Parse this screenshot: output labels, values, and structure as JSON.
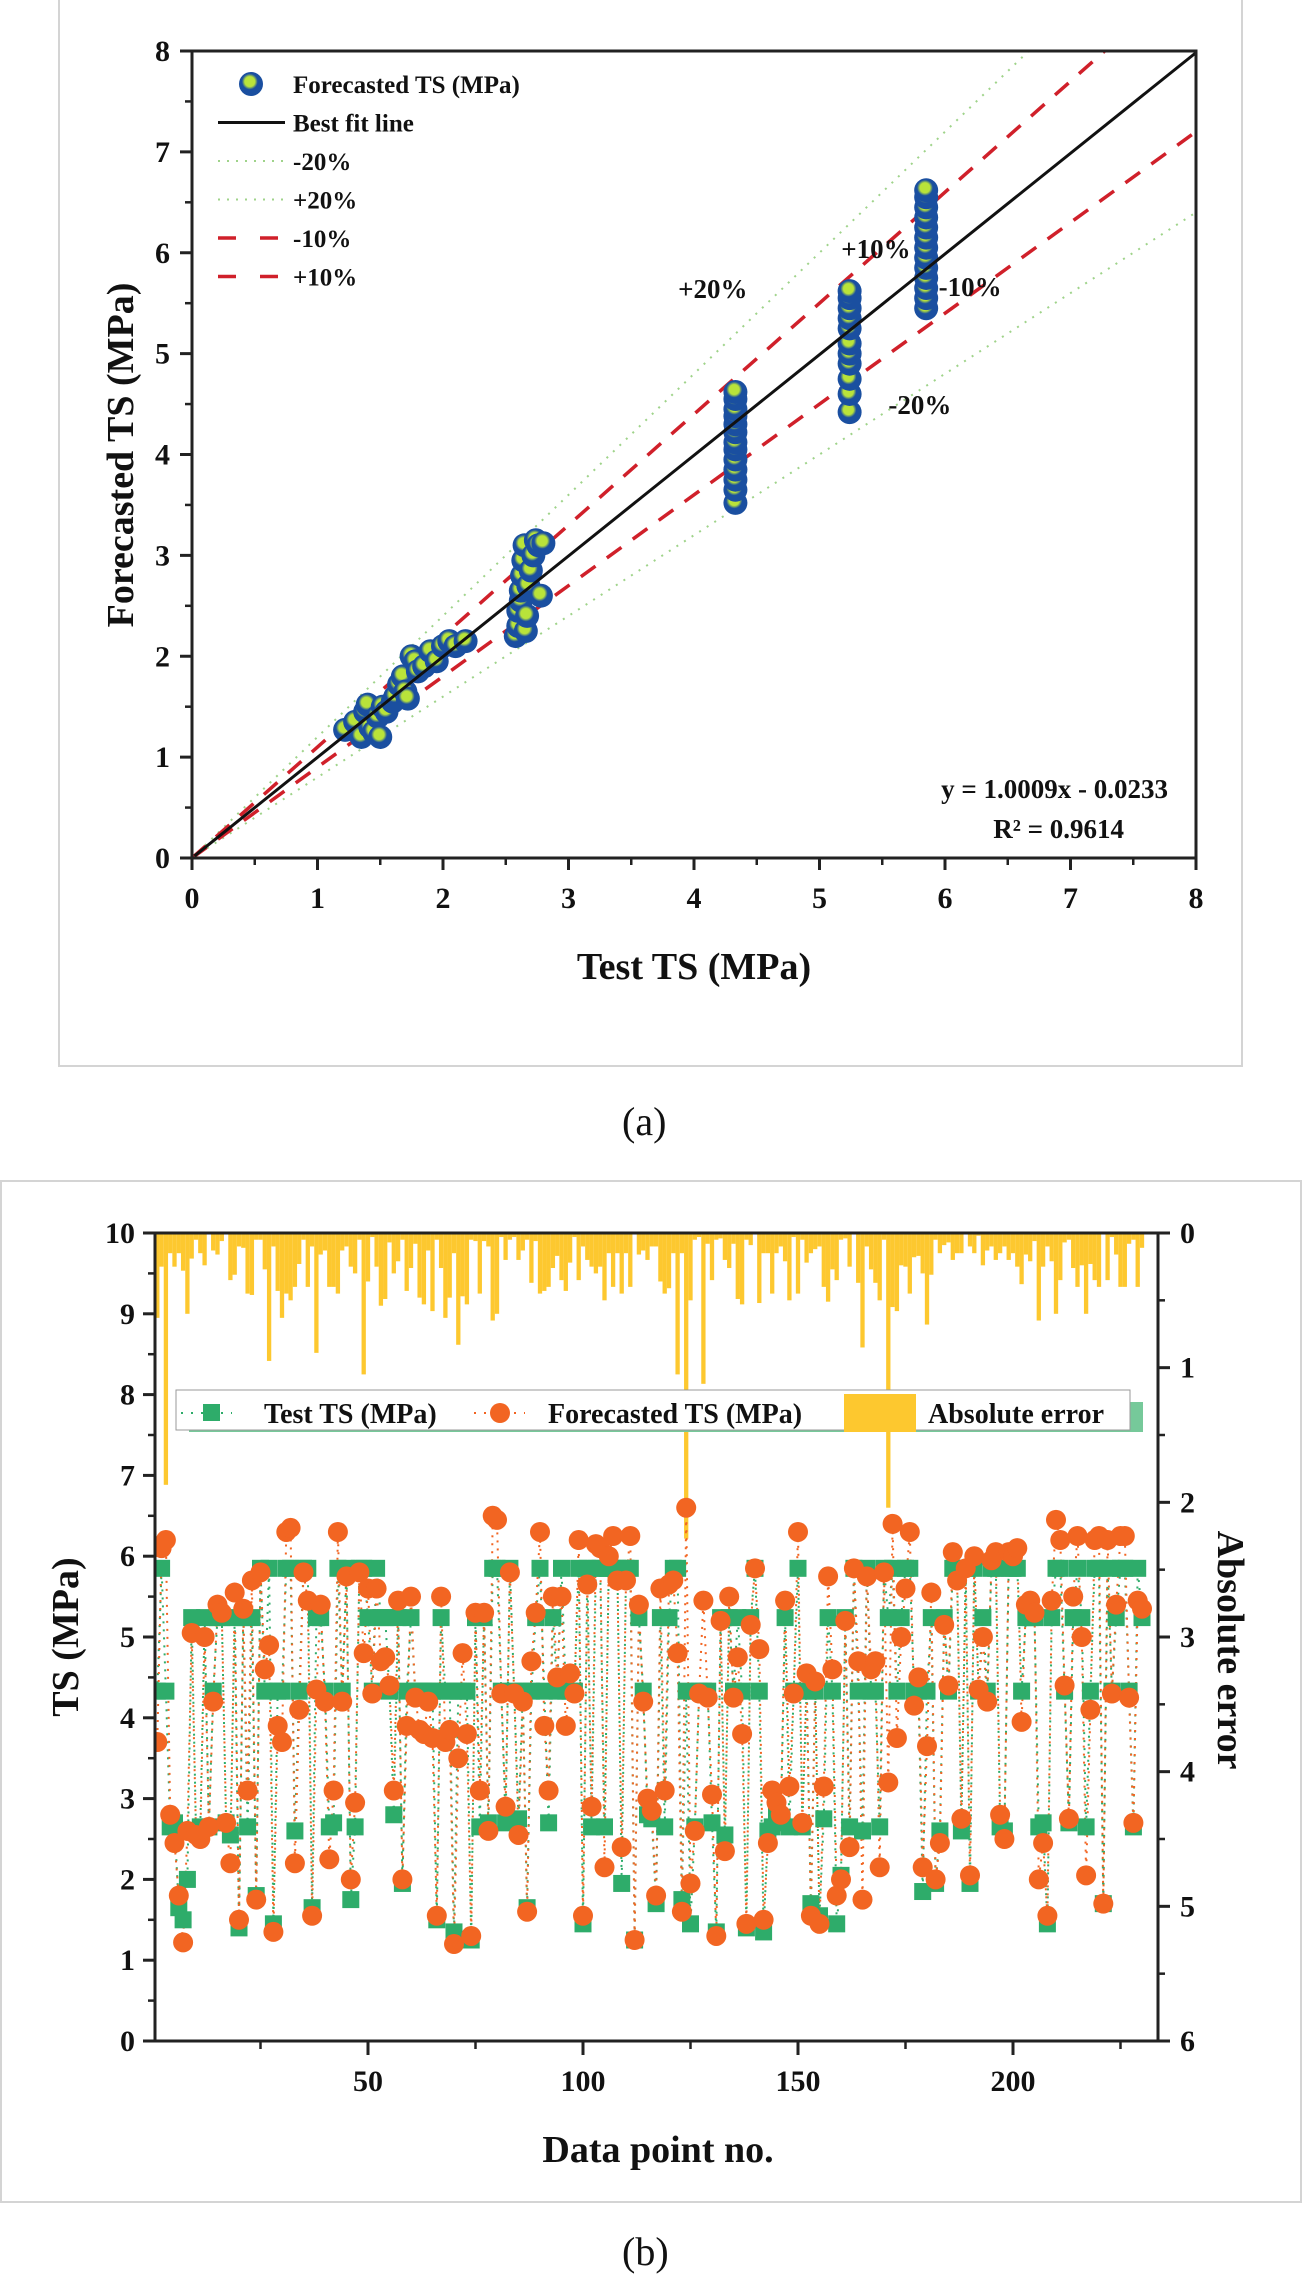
{
  "captions": {
    "a": "(a)",
    "b": "(b)"
  },
  "chart_data": [
    {
      "id": "a",
      "type": "scatter",
      "title": "",
      "xlabel": "Test TS (MPa)",
      "ylabel": "Forecasted TS (MPa)",
      "xlim": [
        0,
        8
      ],
      "ylim": [
        0,
        8
      ],
      "xticks": [
        "0",
        "1",
        "2",
        "3",
        "4",
        "5",
        "6",
        "7",
        "8"
      ],
      "yticks": [
        "0",
        "1",
        "2",
        "3",
        "4",
        "5",
        "6",
        "7",
        "8"
      ],
      "grid": false,
      "legend_position": "top-left",
      "legend": [
        {
          "label": "Forecasted TS (MPa)",
          "kind": "marker"
        },
        {
          "label": "Best fit line",
          "kind": "solid"
        },
        {
          "label": "-20%",
          "kind": "dotted"
        },
        {
          "label": "+20%",
          "kind": "dotted"
        },
        {
          "label": "-10%",
          "kind": "dashed"
        },
        {
          "label": "+10%",
          "kind": "dashed"
        }
      ],
      "colors": {
        "marker_outer": "#1a4fa0",
        "marker_inner": "#b9e33a",
        "fit": "#111111",
        "band10": "#d0202a",
        "band20": "#9fd38a"
      },
      "fit": {
        "slope": 1.0009,
        "intercept": -0.0233
      },
      "bands": [
        {
          "label": "+20%",
          "factor": 1.2
        },
        {
          "label": "-20%",
          "factor": 0.8
        },
        {
          "label": "+10%",
          "factor": 1.1
        },
        {
          "label": "-10%",
          "factor": 0.9
        }
      ],
      "annotations": [
        {
          "text": "+20%",
          "x": 4.15,
          "y": 5.55
        },
        {
          "text": "+10%",
          "x": 5.45,
          "y": 5.95
        },
        {
          "text": "-10%",
          "x": 6.2,
          "y": 5.57
        },
        {
          "text": "-20%",
          "x": 5.8,
          "y": 4.4
        }
      ],
      "equation": "y = 1.0009x - 0.0233",
      "r2": "R² = 0.9614",
      "points": [
        [
          1.22,
          1.27
        ],
        [
          1.3,
          1.35
        ],
        [
          1.35,
          1.2
        ],
        [
          1.38,
          1.45
        ],
        [
          1.4,
          1.52
        ],
        [
          1.42,
          1.3
        ],
        [
          1.45,
          1.25
        ],
        [
          1.48,
          1.4
        ],
        [
          1.5,
          1.2
        ],
        [
          1.52,
          1.5
        ],
        [
          1.55,
          1.45
        ],
        [
          1.6,
          1.55
        ],
        [
          1.62,
          1.6
        ],
        [
          1.65,
          1.72
        ],
        [
          1.68,
          1.8
        ],
        [
          1.7,
          1.65
        ],
        [
          1.72,
          1.58
        ],
        [
          1.75,
          2.0
        ],
        [
          1.78,
          1.95
        ],
        [
          1.8,
          1.85
        ],
        [
          1.85,
          1.9
        ],
        [
          1.9,
          2.05
        ],
        [
          1.95,
          1.95
        ],
        [
          2.0,
          2.1
        ],
        [
          2.05,
          2.15
        ],
        [
          2.1,
          2.1
        ],
        [
          2.18,
          2.15
        ],
        [
          2.58,
          2.2
        ],
        [
          2.6,
          2.3
        ],
        [
          2.6,
          2.45
        ],
        [
          2.62,
          2.55
        ],
        [
          2.62,
          2.65
        ],
        [
          2.63,
          2.8
        ],
        [
          2.64,
          2.95
        ],
        [
          2.65,
          3.1
        ],
        [
          2.66,
          2.25
        ],
        [
          2.67,
          2.4
        ],
        [
          2.68,
          2.7
        ],
        [
          2.7,
          2.85
        ],
        [
          2.72,
          3.0
        ],
        [
          2.74,
          3.15
        ],
        [
          2.76,
          3.1
        ],
        [
          2.78,
          2.6
        ],
        [
          2.8,
          3.12
        ],
        [
          4.33,
          3.52
        ],
        [
          4.33,
          3.65
        ],
        [
          4.33,
          3.75
        ],
        [
          4.33,
          3.85
        ],
        [
          4.33,
          3.95
        ],
        [
          4.33,
          4.05
        ],
        [
          4.33,
          4.12
        ],
        [
          4.33,
          4.22
        ],
        [
          4.33,
          4.3
        ],
        [
          4.33,
          4.38
        ],
        [
          4.33,
          4.45
        ],
        [
          4.33,
          4.55
        ],
        [
          4.33,
          4.62
        ],
        [
          5.24,
          4.42
        ],
        [
          5.24,
          4.6
        ],
        [
          5.24,
          4.75
        ],
        [
          5.24,
          4.9
        ],
        [
          5.24,
          5.0
        ],
        [
          5.24,
          5.1
        ],
        [
          5.24,
          5.25
        ],
        [
          5.24,
          5.35
        ],
        [
          5.24,
          5.45
        ],
        [
          5.24,
          5.55
        ],
        [
          5.24,
          5.62
        ],
        [
          5.85,
          5.45
        ],
        [
          5.85,
          5.55
        ],
        [
          5.85,
          5.65
        ],
        [
          5.85,
          5.75
        ],
        [
          5.85,
          5.85
        ],
        [
          5.85,
          5.95
        ],
        [
          5.85,
          6.05
        ],
        [
          5.85,
          6.15
        ],
        [
          5.85,
          6.25
        ],
        [
          5.85,
          6.35
        ],
        [
          5.85,
          6.45
        ],
        [
          5.85,
          6.55
        ],
        [
          5.85,
          6.62
        ]
      ]
    },
    {
      "id": "b",
      "type": "line",
      "title": "",
      "xlabel": "Data point no.",
      "ylabel": "TS (MPa)",
      "y2label": "Absolute error",
      "xlim": [
        1,
        234
      ],
      "ylim": [
        0,
        10
      ],
      "y2lim": [
        6,
        0
      ],
      "xticks": [
        "50",
        "100",
        "150",
        "200"
      ],
      "yticks": [
        "0",
        "1",
        "2",
        "3",
        "4",
        "5",
        "6",
        "7",
        "8",
        "9",
        "10"
      ],
      "y2ticks": [
        "0",
        "1",
        "2",
        "3",
        "4",
        "5",
        "6"
      ],
      "grid": false,
      "legend_position": "top",
      "legend": [
        {
          "label": "Test TS (MPa)",
          "kind": "square"
        },
        {
          "label": "Forecasted TS (MPa)",
          "kind": "circle"
        },
        {
          "label": "Absolute error",
          "kind": "bar"
        }
      ],
      "colors": {
        "test": "#2eac6a",
        "forecast": "#f26522",
        "error": "#fdc82f",
        "legend_shadow": "#76c99a"
      },
      "test_levels": [
        1.35,
        1.5,
        1.7,
        2.0,
        2.65,
        2.8,
        4.33,
        5.24,
        5.85
      ],
      "test": [
        4.33,
        5.85,
        4.33,
        2.65,
        2.7,
        1.65,
        1.5,
        2.0,
        5.24,
        2.6,
        2.65,
        5.24,
        2.65,
        4.33,
        5.24,
        5.24,
        2.7,
        2.55,
        5.24,
        1.4,
        5.24,
        2.65,
        5.24,
        1.8,
        5.85,
        4.33,
        5.85,
        1.45,
        4.33,
        4.33,
        5.85,
        5.85,
        2.6,
        4.33,
        5.85,
        5.85,
        1.65,
        5.24,
        5.24,
        4.33,
        2.65,
        2.7,
        5.85,
        4.33,
        5.85,
        1.75,
        2.65,
        5.85,
        5.85,
        5.24,
        4.33,
        5.85,
        5.24,
        5.24,
        4.33,
        2.8,
        5.24,
        1.95,
        4.33,
        5.24,
        4.33,
        4.33,
        4.33,
        4.33,
        4.33,
        1.5,
        5.24,
        4.33,
        4.33,
        1.35,
        4.33,
        4.33,
        4.33,
        1.25,
        5.24,
        2.65,
        5.24,
        2.7,
        5.85,
        5.85,
        4.33,
        2.7,
        5.85,
        4.33,
        2.75,
        4.33,
        1.65,
        4.33,
        5.24,
        5.85,
        4.33,
        2.7,
        5.24,
        4.33,
        5.85,
        4.33,
        4.33,
        4.33,
        5.85,
        1.45,
        5.85,
        2.65,
        5.85,
        5.85,
        2.65,
        5.85,
        5.85,
        5.85,
        1.95,
        5.85,
        5.85,
        1.25,
        5.24,
        4.33,
        2.8,
        2.75,
        1.7,
        5.24,
        2.65,
        5.24,
        5.85,
        5.85,
        1.75,
        4.33,
        1.45,
        2.65,
        4.33,
        4.33,
        4.33,
        2.7,
        1.35,
        5.24,
        2.55,
        5.24,
        4.33,
        5.24,
        4.33,
        1.4,
        5.24,
        5.85,
        4.33,
        1.35,
        2.6,
        2.65,
        2.8,
        2.7,
        5.24,
        2.65,
        4.33,
        5.85,
        2.65,
        4.33,
        1.7,
        4.33,
        1.55,
        2.75,
        5.24,
        4.33,
        1.45,
        2.05,
        5.24,
        2.65,
        5.85,
        4.33,
        2.6,
        5.85,
        4.33,
        4.33,
        2.65,
        5.85,
        5.24,
        5.85,
        4.33,
        5.24,
        5.85,
        5.85,
        4.33,
        4.33,
        1.85,
        4.33,
        5.24,
        1.95,
        2.6,
        5.24,
        4.33,
        5.85,
        5.85,
        2.6,
        5.85,
        1.95,
        5.85,
        4.33,
        5.24,
        4.33,
        5.85,
        5.85,
        2.65,
        2.6,
        5.85,
        5.85,
        5.85,
        4.33,
        5.24,
        5.24,
        5.24,
        2.65,
        2.7,
        1.45,
        5.24,
        5.85,
        5.85,
        4.33,
        2.7,
        5.24,
        5.85,
        5.24,
        2.65,
        4.33,
        5.85,
        5.85,
        1.7,
        5.85,
        4.33,
        5.24,
        5.85,
        5.85,
        4.33,
        2.65,
        5.85,
        5.24
      ],
      "forecast": [
        3.7,
        6.1,
        6.2,
        2.8,
        2.45,
        1.8,
        1.22,
        2.6,
        5.05,
        2.55,
        2.5,
        5.0,
        2.65,
        4.2,
        5.4,
        5.3,
        2.7,
        2.2,
        5.55,
        1.5,
        5.35,
        3.1,
        5.7,
        1.75,
        5.8,
        4.6,
        4.9,
        1.35,
        3.9,
        3.7,
        6.3,
        6.35,
        2.2,
        4.1,
        5.8,
        5.45,
        1.55,
        4.35,
        5.4,
        4.2,
        2.25,
        3.1,
        6.3,
        4.2,
        5.75,
        2.0,
        2.95,
        5.8,
        4.8,
        5.6,
        4.3,
        5.6,
        4.7,
        4.75,
        4.4,
        3.1,
        5.45,
        2.0,
        3.9,
        5.5,
        4.25,
        3.85,
        3.8,
        4.2,
        3.75,
        1.55,
        5.5,
        3.7,
        3.85,
        1.2,
        3.5,
        4.8,
        3.8,
        1.3,
        5.3,
        3.1,
        5.3,
        2.6,
        6.5,
        6.45,
        4.3,
        2.9,
        5.8,
        4.3,
        2.55,
        4.2,
        1.6,
        4.7,
        5.3,
        6.3,
        3.9,
        3.1,
        5.5,
        4.5,
        5.5,
        3.9,
        4.55,
        4.3,
        6.2,
        1.55,
        5.65,
        2.9,
        6.15,
        6.1,
        2.15,
        6.0,
        6.25,
        5.7,
        2.4,
        5.7,
        6.25,
        1.25,
        5.4,
        4.2,
        3.0,
        2.85,
        1.8,
        5.6,
        3.1,
        5.65,
        5.7,
        4.8,
        1.6,
        6.6,
        1.95,
        2.6,
        4.3,
        5.45,
        4.25,
        3.05,
        1.3,
        5.2,
        2.35,
        5.5,
        4.25,
        4.75,
        3.8,
        1.45,
        5.15,
        5.85,
        4.85,
        1.5,
        2.45,
        3.1,
        2.95,
        2.8,
        5.45,
        3.15,
        4.3,
        6.3,
        2.7,
        4.55,
        1.55,
        4.45,
        1.45,
        3.15,
        5.75,
        4.6,
        1.8,
        2.0,
        5.2,
        2.4,
        5.85,
        4.7,
        1.75,
        5.75,
        4.6,
        4.7,
        2.15,
        5.8,
        3.2,
        6.4,
        3.75,
        5.0,
        5.6,
        6.3,
        4.15,
        4.5,
        2.15,
        3.65,
        5.55,
        2.0,
        2.45,
        5.15,
        4.4,
        6.05,
        5.7,
        2.75,
        5.85,
        2.05,
        6.0,
        4.35,
        5.0,
        4.2,
        5.95,
        6.05,
        2.8,
        2.5,
        6.05,
        6.0,
        6.1,
        3.95,
        5.4,
        5.45,
        5.3,
        2.0,
        2.45,
        1.55,
        5.45,
        6.45,
        6.2,
        4.4,
        2.75,
        5.5,
        6.25,
        5.0,
        2.05,
        4.1,
        6.2,
        6.25,
        1.7,
        6.2,
        4.3,
        5.4,
        6.25,
        6.25,
        4.25,
        2.7,
        5.45,
        5.35
      ]
    }
  ]
}
